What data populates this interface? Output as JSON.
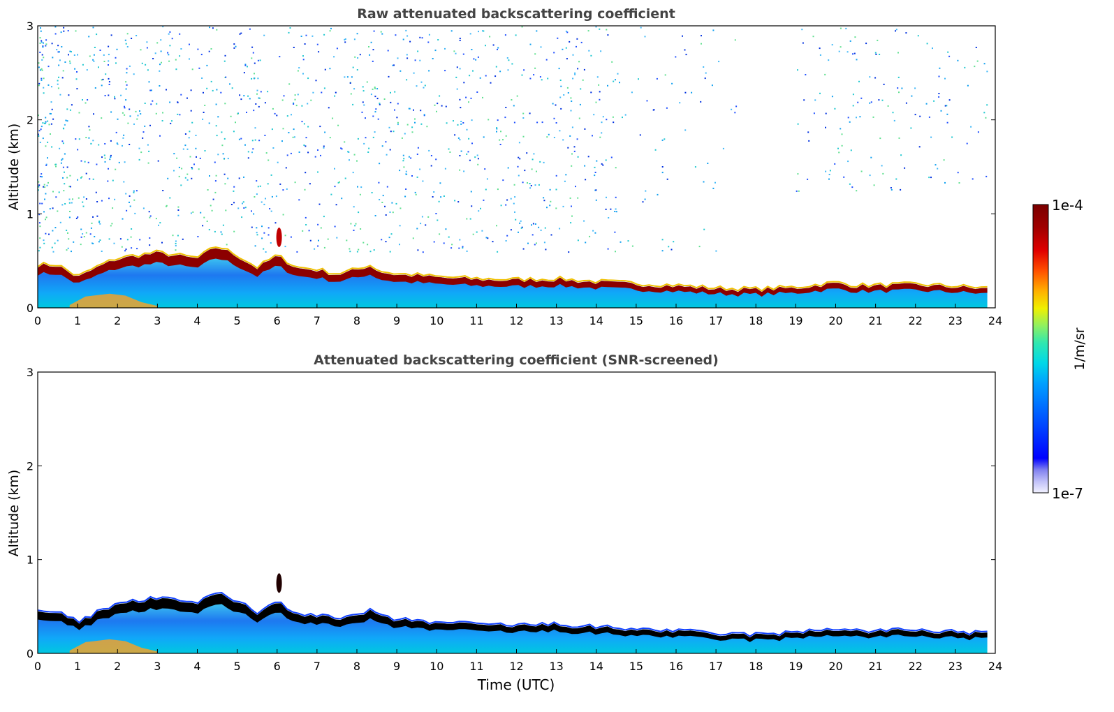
{
  "chart_data": [
    {
      "type": "heatmap",
      "title": "Raw attenuated backscattering coefficient",
      "xlabel": "",
      "ylabel": "Altitude (km)",
      "xlim": [
        0,
        24
      ],
      "ylim": [
        0,
        3
      ],
      "xticks": [
        "0",
        "1",
        "2",
        "3",
        "4",
        "5",
        "6",
        "7",
        "8",
        "9",
        "10",
        "11",
        "12",
        "13",
        "14",
        "15",
        "16",
        "17",
        "18",
        "19",
        "20",
        "21",
        "22",
        "23",
        "24"
      ],
      "yticks": [
        "0",
        "1",
        "2",
        "3"
      ],
      "screened": false,
      "layer_top_km": [
        [
          0,
          0.45
        ],
        [
          0.5,
          0.45
        ],
        [
          1,
          0.32
        ],
        [
          1.5,
          0.43
        ],
        [
          2,
          0.52
        ],
        [
          2.5,
          0.55
        ],
        [
          3,
          0.58
        ],
        [
          3.5,
          0.55
        ],
        [
          4,
          0.52
        ],
        [
          4.5,
          0.65
        ],
        [
          5,
          0.55
        ],
        [
          5.5,
          0.42
        ],
        [
          6,
          0.55
        ],
        [
          6.5,
          0.42
        ],
        [
          7,
          0.4
        ],
        [
          7.5,
          0.35
        ],
        [
          8,
          0.4
        ],
        [
          8.3,
          0.45
        ],
        [
          8.6,
          0.38
        ],
        [
          9,
          0.35
        ],
        [
          9.5,
          0.34
        ],
        [
          10,
          0.32
        ],
        [
          11,
          0.3
        ],
        [
          12,
          0.29
        ],
        [
          13,
          0.3
        ],
        [
          14,
          0.27
        ],
        [
          15,
          0.25
        ],
        [
          16,
          0.23
        ],
        [
          17,
          0.2
        ],
        [
          18,
          0.19
        ],
        [
          19,
          0.21
        ],
        [
          20,
          0.26
        ],
        [
          20.5,
          0.23
        ],
        [
          21,
          0.23
        ],
        [
          22,
          0.24
        ],
        [
          23,
          0.22
        ],
        [
          23.8,
          0.2
        ]
      ],
      "layer_bottom_km": [
        [
          0,
          0.18
        ],
        [
          1,
          0.15
        ],
        [
          2,
          0.25
        ],
        [
          3,
          0.38
        ],
        [
          4,
          0.35
        ],
        [
          4.5,
          0.45
        ],
        [
          5,
          0.32
        ],
        [
          5.5,
          0.25
        ],
        [
          6,
          0.32
        ],
        [
          7,
          0.22
        ],
        [
          8,
          0.25
        ],
        [
          9,
          0.22
        ],
        [
          10,
          0.2
        ],
        [
          12,
          0.17
        ],
        [
          14,
          0.14
        ],
        [
          16,
          0.11
        ],
        [
          17,
          0.08
        ],
        [
          18,
          0.05
        ],
        [
          19,
          0.07
        ],
        [
          20,
          0.1
        ],
        [
          21,
          0.06
        ],
        [
          22,
          0.04
        ],
        [
          23,
          0.04
        ],
        [
          23.8,
          0.04
        ]
      ]
    },
    {
      "type": "heatmap",
      "title": "Attenuated backscattering coefficient (SNR-screened)",
      "xlabel": "Time (UTC)",
      "ylabel": "Altitude (km)",
      "xlim": [
        0,
        24
      ],
      "ylim": [
        0,
        3
      ],
      "xticks": [
        "0",
        "1",
        "2",
        "3",
        "4",
        "5",
        "6",
        "7",
        "8",
        "9",
        "10",
        "11",
        "12",
        "13",
        "14",
        "15",
        "16",
        "17",
        "18",
        "19",
        "20",
        "21",
        "22",
        "23",
        "24"
      ],
      "yticks": [
        "0",
        "1",
        "2",
        "3"
      ],
      "screened": true
    }
  ],
  "colorbar": {
    "label": "1/m/sr",
    "max_label": "1e-4",
    "min_label": "1e-7",
    "colors": [
      "#f2f2ff",
      "#c0c0f8",
      "#8080f0",
      "#0000ff",
      "#0050ff",
      "#00a0ff",
      "#00d8e8",
      "#30e8b0",
      "#90f060",
      "#f0f000",
      "#ffb000",
      "#ff5000",
      "#e00000",
      "#a00000",
      "#7a0000"
    ]
  }
}
